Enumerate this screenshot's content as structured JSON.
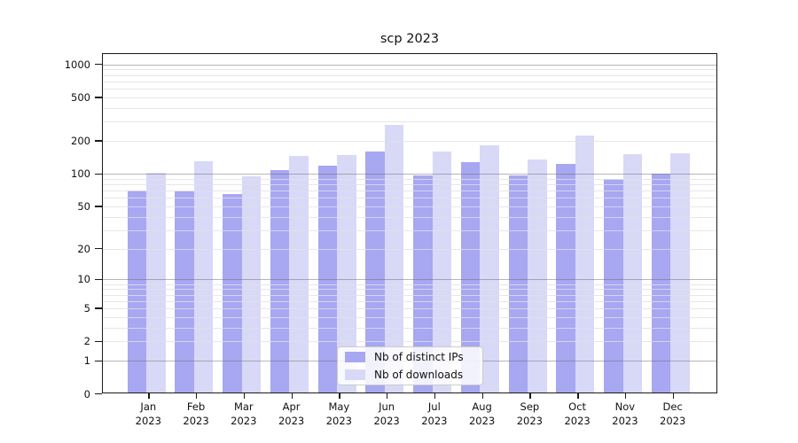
{
  "chart_data": {
    "type": "bar",
    "title": "scp 2023",
    "categories": [
      "Jan 2023",
      "Feb 2023",
      "Mar 2023",
      "Apr 2023",
      "May 2023",
      "Jun 2023",
      "Jul 2023",
      "Aug 2023",
      "Sep 2023",
      "Oct 2023",
      "Nov 2023",
      "Dec 2023"
    ],
    "series": [
      {
        "name": "Nb of distinct IPs",
        "color": "#a7a7f2",
        "values": [
          70,
          69,
          65,
          108,
          119,
          160,
          96,
          127,
          97,
          123,
          90,
          100
        ]
      },
      {
        "name": "Nb of downloads",
        "color": "#d8d8f7",
        "values": [
          103,
          130,
          95,
          146,
          149,
          279,
          161,
          182,
          135,
          226,
          152,
          154
        ]
      }
    ],
    "xlabel": "",
    "ylabel": "",
    "y_scale": "symlog",
    "y_ticks": [
      0,
      1,
      2,
      5,
      10,
      20,
      50,
      100,
      200,
      500,
      1000
    ],
    "ylim": [
      0,
      1270
    ],
    "grid": true,
    "legend_position": "inside-bottom-center",
    "colors": {
      "background": "#ffffff",
      "axis": "#1a1a1a",
      "minor_grid": "#e7e7ec",
      "major_grid": "#9a9a9a"
    }
  }
}
